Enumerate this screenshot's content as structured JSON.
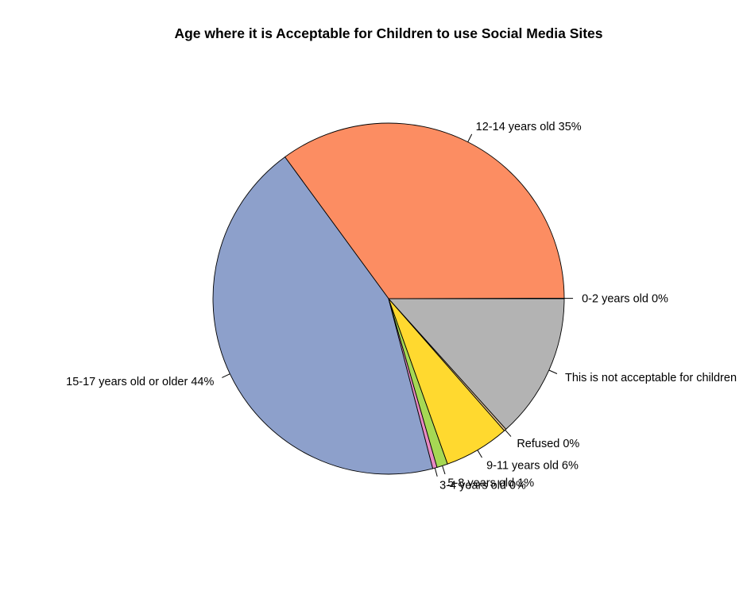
{
  "chart_data": {
    "type": "pie",
    "title": "Age where it is Acceptable for Children to use Social Media Sites",
    "start_angle_deg": 0,
    "direction": "counterclockwise",
    "slices": [
      {
        "category": "0-2 years old",
        "value": 0.05,
        "percent_label": "0%",
        "label": "0-2 years old 0%",
        "color": "#66C2A5"
      },
      {
        "category": "12-14 years old",
        "value": 35.0,
        "percent_label": "35%",
        "label": "12-14 years old 35%",
        "color": "#FC8D62"
      },
      {
        "category": "15-17 years old or older",
        "value": 44.0,
        "percent_label": "44%",
        "label": "15-17 years old or older 44%",
        "color": "#8DA0CB"
      },
      {
        "category": "3-4 years old",
        "value": 0.4,
        "percent_label": "0%",
        "label": "3-4 years old 0%",
        "color": "#E78AC3"
      },
      {
        "category": "5-8 years old",
        "value": 1.0,
        "percent_label": "1%",
        "label": "5-8 years old 1%",
        "color": "#A6D854"
      },
      {
        "category": "9-11 years old",
        "value": 6.0,
        "percent_label": "6%",
        "label": "9-11 years old 6%",
        "color": "#FFD92F"
      },
      {
        "category": "Refused",
        "value": 0.2,
        "percent_label": "0%",
        "label": "Refused 0%",
        "color": "#E5C494"
      },
      {
        "category": "This is not acceptable for children",
        "value": 13.35,
        "percent_label": "",
        "label": "This is not acceptable for children",
        "color": "#B3B3B3"
      }
    ]
  }
}
